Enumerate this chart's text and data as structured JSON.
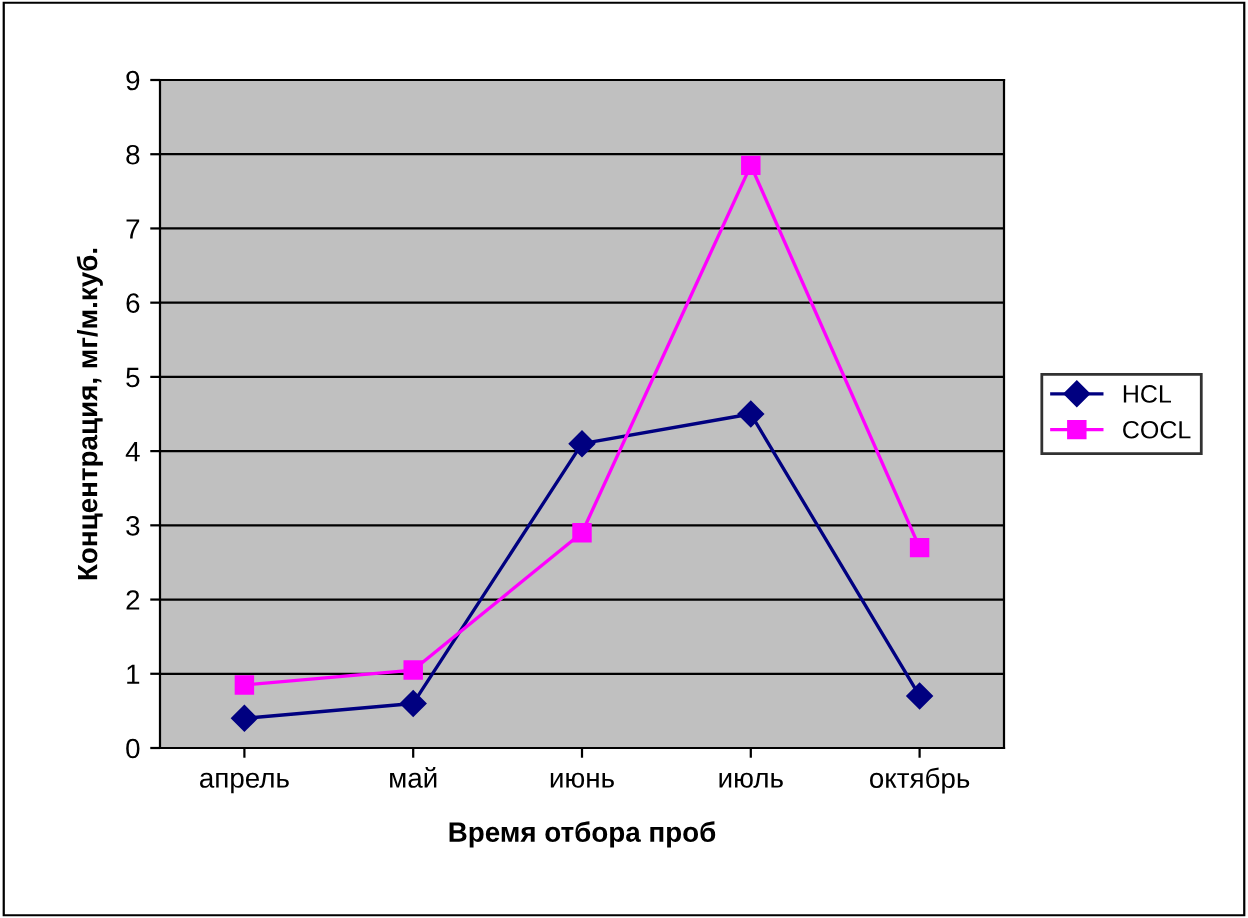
{
  "chart_data": {
    "type": "line",
    "xlabel": "Время отбора проб",
    "ylabel": "Концентрация, мг/м.куб.",
    "categories": [
      "апрель",
      "май",
      "июнь",
      "июль",
      "октябрь"
    ],
    "series": [
      {
        "name": "HCL",
        "color": "#000080",
        "marker": "diamond",
        "values": [
          0.4,
          0.6,
          4.1,
          4.5,
          0.7
        ]
      },
      {
        "name": "COCL",
        "color": "#ff00ff",
        "marker": "square",
        "values": [
          0.85,
          1.05,
          2.9,
          7.85,
          2.7
        ]
      }
    ],
    "ylim": [
      0,
      9
    ],
    "yticks": [
      0,
      1,
      2,
      3,
      4,
      5,
      6,
      7,
      8,
      9
    ],
    "grid": "y",
    "legend": "right",
    "line_style": "solid"
  }
}
